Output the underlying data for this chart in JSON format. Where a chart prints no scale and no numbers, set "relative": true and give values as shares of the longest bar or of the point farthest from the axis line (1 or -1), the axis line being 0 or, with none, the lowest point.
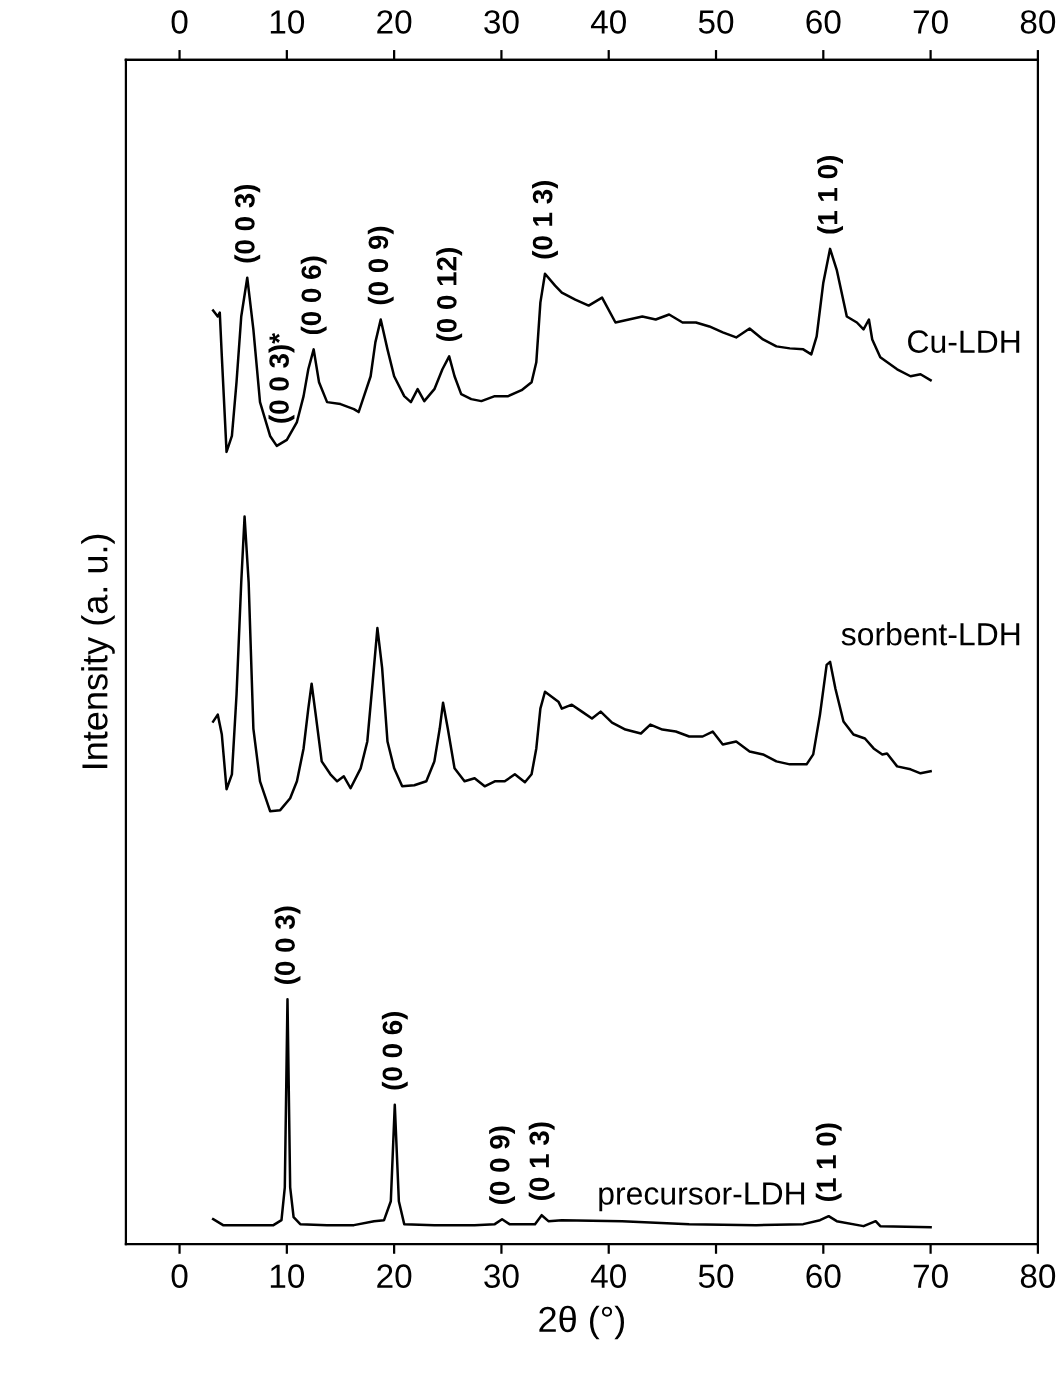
{
  "chart_data": {
    "type": "line",
    "relative": true,
    "xlabel": "2θ (°)",
    "ylabel": "Intensity (a. u.)",
    "xlim": [
      -5,
      80
    ],
    "xticks": [
      0,
      10,
      20,
      30,
      40,
      50,
      60,
      70,
      80
    ],
    "x2lim": [
      -5,
      80
    ],
    "x2ticks": [
      0,
      10,
      20,
      30,
      40,
      50,
      60,
      70,
      80
    ],
    "tick_labels": "x",
    "grid": false,
    "legend": false,
    "marker": "none",
    "line_style": "solid",
    "series": [
      {
        "name": "Cu-LDH",
        "color": "#000000",
        "x": [
          3.13,
          3.56,
          3.75,
          3.94,
          4.38,
          4.88,
          5.31,
          5.75,
          6.31,
          6.88,
          7.5,
          8.44,
          9.06,
          10.0,
          10.94,
          11.56,
          12.0,
          12.5,
          13.0,
          13.75,
          15.0,
          16.25,
          16.69,
          17.19,
          17.81,
          18.25,
          18.75,
          19.38,
          20.0,
          20.94,
          21.56,
          22.19,
          22.81,
          23.75,
          24.5,
          25.13,
          25.63,
          26.25,
          27.19,
          28.13,
          29.38,
          30.63,
          31.88,
          32.81,
          33.25,
          33.63,
          34.06,
          35.0,
          35.63,
          36.88,
          38.13,
          39.38,
          40.63,
          41.88,
          43.13,
          44.38,
          45.63,
          46.88,
          48.13,
          49.38,
          50.63,
          51.88,
          53.13,
          54.38,
          55.63,
          56.88,
          58.13,
          58.88,
          59.38,
          60.0,
          60.63,
          61.25,
          62.19,
          63.13,
          63.75,
          64.25,
          64.56,
          65.31,
          66.88,
          68.13,
          69.06,
          70.0
        ],
        "values": [
          0.938,
          0.932,
          0.936,
          0.892,
          0.796,
          0.812,
          0.866,
          0.932,
          0.971,
          0.919,
          0.846,
          0.812,
          0.802,
          0.808,
          0.826,
          0.852,
          0.879,
          0.899,
          0.866,
          0.846,
          0.844,
          0.839,
          0.836,
          0.852,
          0.872,
          0.906,
          0.929,
          0.899,
          0.872,
          0.852,
          0.846,
          0.859,
          0.847,
          0.859,
          0.879,
          0.892,
          0.872,
          0.854,
          0.849,
          0.847,
          0.852,
          0.852,
          0.858,
          0.866,
          0.886,
          0.946,
          0.975,
          0.963,
          0.956,
          0.949,
          0.943,
          0.951,
          0.926,
          0.929,
          0.932,
          0.929,
          0.934,
          0.926,
          0.926,
          0.922,
          0.916,
          0.911,
          0.92,
          0.909,
          0.902,
          0.9,
          0.899,
          0.894,
          0.912,
          0.966,
          1.0,
          0.979,
          0.932,
          0.926,
          0.919,
          0.929,
          0.909,
          0.891,
          0.879,
          0.872,
          0.874,
          0.868
        ]
      },
      {
        "name": "sorbent-LDH",
        "color": "#000000",
        "x": [
          3.13,
          3.56,
          3.94,
          4.38,
          4.88,
          5.31,
          5.75,
          6.06,
          6.44,
          6.88,
          7.5,
          8.44,
          9.38,
          10.31,
          10.94,
          11.56,
          12.0,
          12.31,
          12.69,
          13.25,
          14.06,
          14.69,
          15.31,
          15.94,
          16.88,
          17.5,
          18.0,
          18.44,
          18.88,
          19.38,
          20.0,
          20.75,
          21.88,
          23.0,
          23.75,
          24.25,
          24.56,
          25.0,
          25.63,
          26.56,
          27.5,
          28.44,
          29.38,
          30.31,
          31.25,
          32.19,
          32.81,
          33.25,
          33.63,
          34.06,
          35.31,
          35.63,
          36.56,
          37.5,
          38.44,
          39.25,
          40.31,
          41.56,
          43.0,
          43.88,
          45.0,
          46.25,
          47.5,
          48.75,
          49.69,
          50.63,
          51.88,
          53.13,
          54.38,
          55.63,
          56.88,
          58.44,
          59.06,
          59.69,
          60.31,
          60.63,
          61.13,
          61.88,
          62.81,
          63.88,
          64.69,
          65.5,
          65.94,
          66.88,
          68.13,
          69.06,
          70.0
        ],
        "values": [
          0.525,
          0.532,
          0.512,
          0.457,
          0.472,
          0.552,
          0.665,
          0.731,
          0.665,
          0.518,
          0.465,
          0.435,
          0.436,
          0.448,
          0.465,
          0.498,
          0.538,
          0.563,
          0.532,
          0.485,
          0.472,
          0.465,
          0.47,
          0.458,
          0.478,
          0.505,
          0.565,
          0.619,
          0.579,
          0.505,
          0.478,
          0.46,
          0.461,
          0.465,
          0.485,
          0.518,
          0.544,
          0.518,
          0.478,
          0.465,
          0.468,
          0.46,
          0.465,
          0.465,
          0.472,
          0.464,
          0.472,
          0.498,
          0.538,
          0.555,
          0.545,
          0.538,
          0.542,
          0.535,
          0.528,
          0.535,
          0.524,
          0.517,
          0.513,
          0.522,
          0.517,
          0.515,
          0.51,
          0.51,
          0.515,
          0.502,
          0.505,
          0.495,
          0.492,
          0.485,
          0.482,
          0.482,
          0.492,
          0.532,
          0.582,
          0.585,
          0.558,
          0.525,
          0.512,
          0.508,
          0.498,
          0.492,
          0.493,
          0.48,
          0.477,
          0.473,
          0.475
        ]
      },
      {
        "name": "precursor-LDH",
        "color": "#000000",
        "x": [
          3.13,
          3.75,
          4.06,
          6.25,
          8.75,
          9.5,
          9.81,
          10.06,
          10.31,
          10.63,
          11.25,
          13.75,
          16.25,
          18.13,
          19.06,
          19.69,
          20.06,
          20.44,
          20.94,
          23.75,
          27.5,
          29.38,
          30.06,
          30.75,
          33.13,
          33.75,
          34.38,
          35.63,
          41.25,
          47.5,
          53.75,
          58.13,
          59.69,
          60.5,
          61.25,
          63.75,
          64.88,
          65.31,
          70.0
        ],
        "values": [
          0.025,
          0.021,
          0.019,
          0.019,
          0.019,
          0.024,
          0.057,
          0.246,
          0.057,
          0.027,
          0.02,
          0.019,
          0.019,
          0.023,
          0.024,
          0.043,
          0.14,
          0.043,
          0.02,
          0.019,
          0.019,
          0.02,
          0.025,
          0.02,
          0.02,
          0.029,
          0.023,
          0.024,
          0.023,
          0.02,
          0.019,
          0.02,
          0.024,
          0.028,
          0.023,
          0.018,
          0.023,
          0.018,
          0.017
        ]
      }
    ],
    "annotations": [
      {
        "text": "(0 0 3)",
        "x": 6.31,
        "y": 0.971
      },
      {
        "text": "(0 0 3)*",
        "x": 9.5,
        "y": 0.81
      },
      {
        "text": "(0 0 6)",
        "x": 12.5,
        "y": 0.899
      },
      {
        "text": "(0 0 9)",
        "x": 18.75,
        "y": 0.929
      },
      {
        "text": "(0 0 12)",
        "x": 25.13,
        "y": 0.892
      },
      {
        "text": "(0 1 3)",
        "x": 34.06,
        "y": 0.975
      },
      {
        "text": "(1 1 0)",
        "x": 60.63,
        "y": 1.0
      },
      {
        "text": "(0 0 3)",
        "x": 10.06,
        "y": 0.246
      },
      {
        "text": "(0 0 6)",
        "x": 20.06,
        "y": 0.14
      },
      {
        "text": "(0 0 9)",
        "x": 30.06,
        "y": 0.025
      },
      {
        "text": "(0 1 3)",
        "x": 33.75,
        "y": 0.029
      },
      {
        "text": "(1 1 0)",
        "x": 60.5,
        "y": 0.028
      }
    ]
  }
}
